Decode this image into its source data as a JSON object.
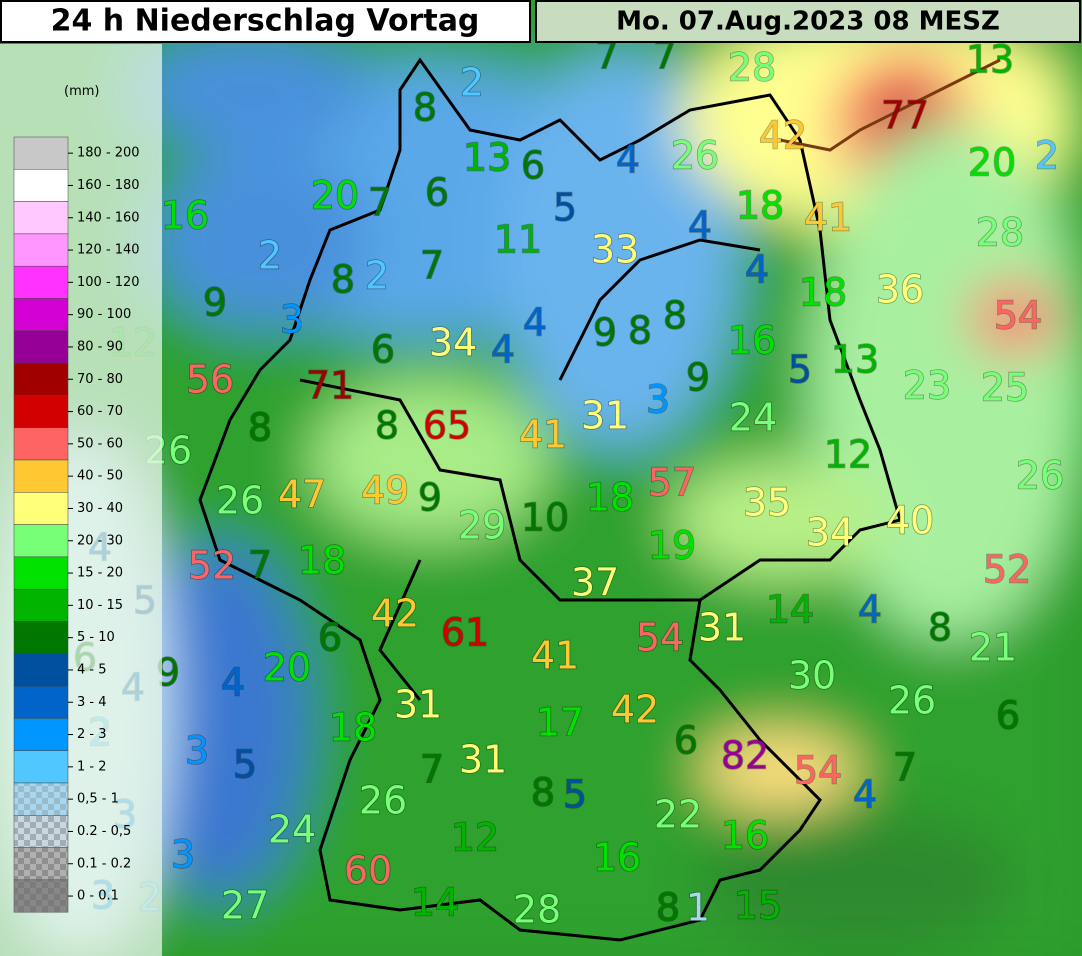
{
  "header": {
    "title": "24 h Niederschlag Vortag",
    "date": "Mo. 07.Aug.2023 08 MESZ"
  },
  "legend": {
    "unit": "(mm)",
    "items": [
      {
        "label": "180 - 200",
        "color": "#c8c8c8"
      },
      {
        "label": "160 - 180",
        "color": "#ffffff"
      },
      {
        "label": "140 - 160",
        "color": "#ffc8ff"
      },
      {
        "label": "120 - 140",
        "color": "#ff96ff"
      },
      {
        "label": "100 - 120",
        "color": "#ff32ff"
      },
      {
        "label": "90 - 100",
        "color": "#d200d2"
      },
      {
        "label": "80 - 90",
        "color": "#960096"
      },
      {
        "label": "70 - 80",
        "color": "#a00000"
      },
      {
        "label": "60 - 70",
        "color": "#d20000"
      },
      {
        "label": "50 - 60",
        "color": "#ff6464"
      },
      {
        "label": "40 - 50",
        "color": "#ffc832"
      },
      {
        "label": "30 - 40",
        "color": "#ffff78"
      },
      {
        "label": "20 - 30",
        "color": "#78ff78"
      },
      {
        "label": "15 - 20",
        "color": "#00e100"
      },
      {
        "label": "10 - 15",
        "color": "#00b400"
      },
      {
        "label": "5 - 10",
        "color": "#007800"
      },
      {
        "label": "4 - 5",
        "color": "#0050a0"
      },
      {
        "label": "3 - 4",
        "color": "#0064c8"
      },
      {
        "label": "2 - 3",
        "color": "#0096ff"
      },
      {
        "label": "1 - 2",
        "color": "#50c8ff"
      },
      {
        "label": "0,5 - 1",
        "color": "#a8d8f0"
      },
      {
        "label": "0.2 - 0,5",
        "color": "#c8d8e0"
      },
      {
        "label": "0.1 - 0.2",
        "color": "#b0b0b0"
      },
      {
        "label": "0 - 0.1",
        "color": "#888888"
      }
    ]
  },
  "stations": [
    2,
    8,
    13,
    6,
    4,
    26,
    28,
    7,
    7,
    13,
    77,
    42,
    20,
    2,
    16,
    20,
    7,
    6,
    5,
    11,
    33,
    4,
    18,
    41,
    28,
    2,
    8,
    2,
    7,
    4,
    9,
    3,
    4,
    9,
    8,
    8,
    18,
    36,
    54,
    12,
    6,
    34,
    4,
    16,
    5,
    13,
    56,
    71,
    9,
    23,
    25,
    8,
    8,
    65,
    31,
    3,
    24,
    41,
    26,
    12,
    57,
    26,
    26,
    47,
    49,
    9,
    29,
    10,
    18,
    35,
    34,
    40,
    4,
    52,
    7,
    18,
    19,
    52,
    5,
    37,
    42,
    61,
    14,
    4,
    8,
    54,
    31,
    21,
    6,
    9,
    4,
    4,
    20,
    6,
    41,
    30,
    31,
    42,
    26,
    6,
    2,
    18,
    17,
    3,
    5,
    7,
    31,
    6,
    82,
    54,
    7,
    8,
    5,
    4,
    3,
    26,
    22,
    24,
    12,
    16,
    3,
    16,
    60,
    3,
    2,
    27,
    14,
    28,
    8,
    1,
    15
  ]
}
